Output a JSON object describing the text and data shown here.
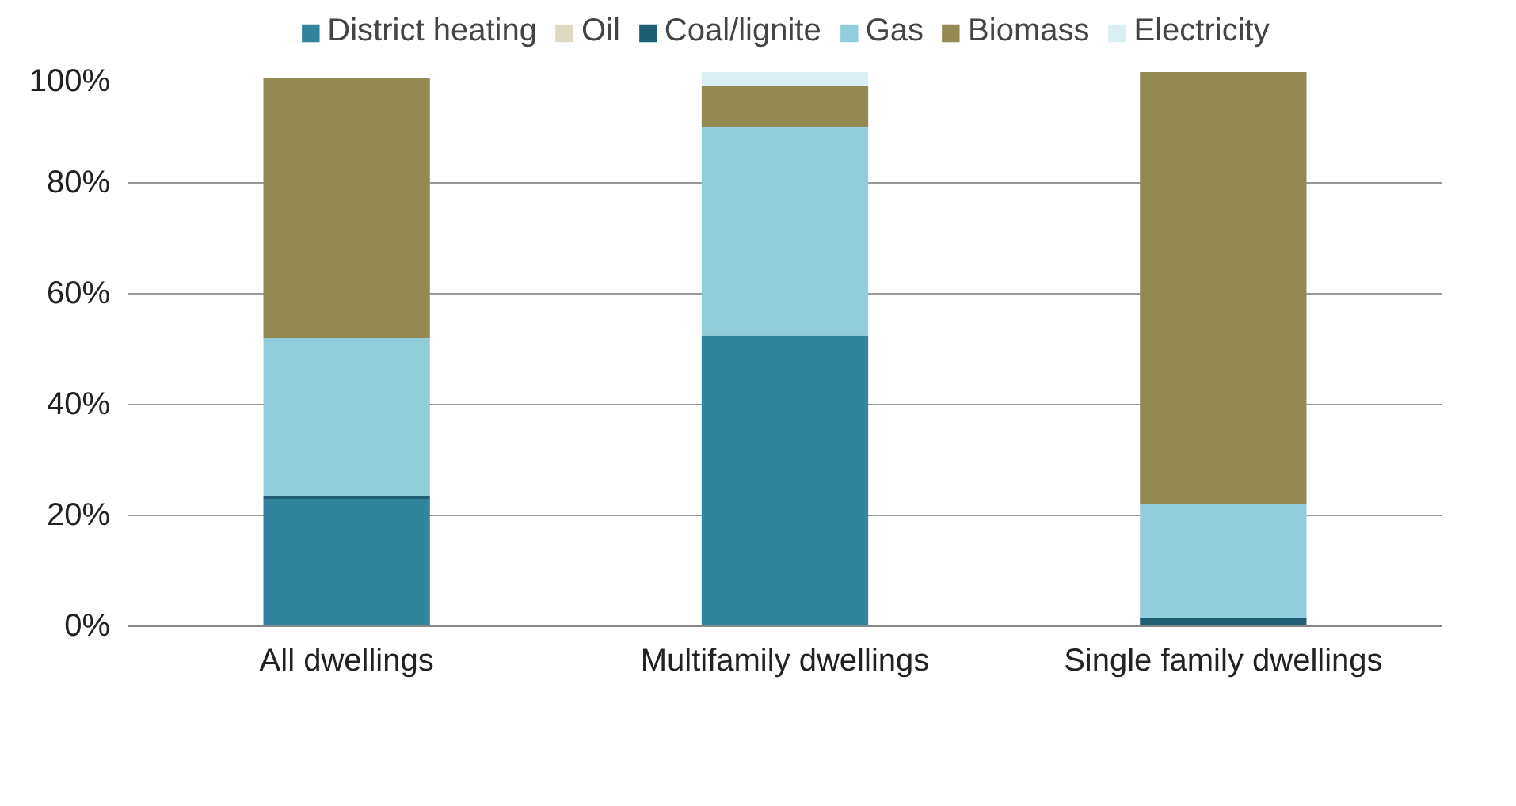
{
  "chart_data": {
    "type": "bar",
    "stacked": true,
    "categories": [
      "All dwellings",
      "Multifamily dwellings",
      "Single family dwellings"
    ],
    "series": [
      {
        "name": "District heating",
        "color": "#31849b",
        "values": [
          23,
          52.5,
          0
        ]
      },
      {
        "name": "Oil",
        "color": "#ddd9c3",
        "values": [
          0,
          0,
          0
        ]
      },
      {
        "name": "Coal/lignite",
        "color": "#1f5f73",
        "values": [
          0.5,
          0,
          1.5
        ]
      },
      {
        "name": "Gas",
        "color": "#92cddc",
        "values": [
          28.5,
          37.5,
          20.5
        ]
      },
      {
        "name": "Biomass",
        "color": "#938953",
        "values": [
          47,
          7.5,
          78
        ]
      },
      {
        "name": "Electricity",
        "color": "#dbeef3",
        "values": [
          0,
          2.5,
          0
        ]
      }
    ],
    "ylim": [
      0,
      100
    ],
    "yticks": [
      {
        "value": 0,
        "label": "0%"
      },
      {
        "value": 20,
        "label": "20%"
      },
      {
        "value": 40,
        "label": "40%"
      },
      {
        "value": 60,
        "label": "60%"
      },
      {
        "value": 80,
        "label": "80%"
      },
      {
        "value": 100,
        "label": "100%"
      }
    ],
    "grid": "y",
    "legend": "top"
  }
}
